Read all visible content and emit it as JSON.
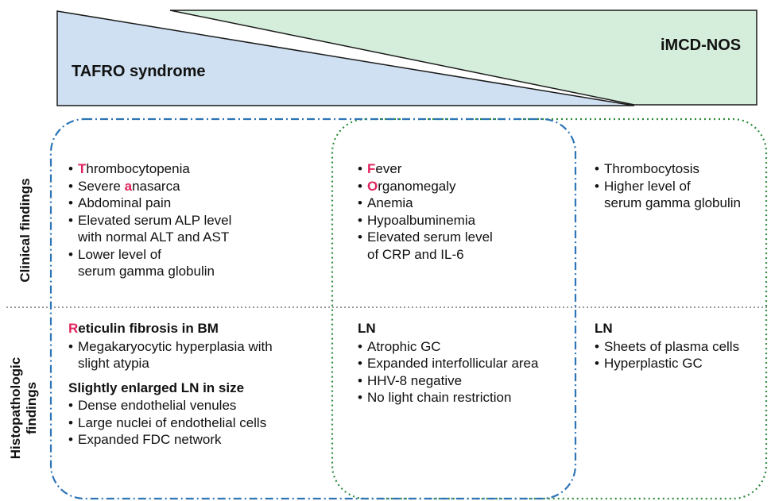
{
  "header": {
    "left_title": "TAFRO syndrome",
    "right_title": "iMCD-NOS"
  },
  "row_labels": {
    "clinical": "Clinical findings",
    "histo_line1": "Histopathologic",
    "histo_line2": "findings"
  },
  "clinical": {
    "tafro": [
      {
        "hl": "T",
        "rest": "hrombocytopenia"
      },
      {
        "pre": "Severe ",
        "hl": "a",
        "rest": "nasarca"
      },
      {
        "rest": "Abdominal pain"
      },
      {
        "rest": "Elevated serum ALP level",
        "cont": "with normal ALT and AST"
      },
      {
        "rest": "Lower level of",
        "cont": "serum gamma globulin"
      }
    ],
    "shared": [
      {
        "hl": "F",
        "rest": "ever"
      },
      {
        "hl": "O",
        "rest": "rganomegaly"
      },
      {
        "rest": "Anemia"
      },
      {
        "rest": "Hypoalbuminemia"
      },
      {
        "rest": "Elevated serum level",
        "cont": "of CRP and IL-6"
      }
    ],
    "imcd": [
      {
        "rest": "Thrombocytosis"
      },
      {
        "rest": "Higher level of",
        "cont": "serum gamma globulin"
      }
    ]
  },
  "histo": {
    "tafro": {
      "heading1_hl": "R",
      "heading1_rest": "eticulin fibrosis in BM",
      "items1": [
        {
          "rest": "Megakaryocytic hyperplasia with",
          "cont": "slight atypia"
        }
      ],
      "heading2": "Slightly enlarged LN in size",
      "items2": [
        {
          "rest": "Dense endothelial venules"
        },
        {
          "rest": "Large nuclei of endothelial cells"
        },
        {
          "rest": "Expanded FDC network"
        }
      ]
    },
    "shared": {
      "heading": "LN",
      "items": [
        {
          "rest": "Atrophic GC"
        },
        {
          "rest": "Expanded interfollicular area"
        },
        {
          "rest": "HHV-8 negative"
        },
        {
          "rest": "No light chain restriction"
        }
      ]
    },
    "imcd": {
      "heading": "LN",
      "items": [
        {
          "rest": "Sheets of plasma cells"
        },
        {
          "rest": "Hyperplastic GC"
        }
      ]
    }
  },
  "colors": {
    "tafro_fill": "#cfe0f2",
    "imcd_fill": "#d5eedb",
    "tafro_border": "#2e75b6",
    "imcd_border": "#2e8b3c",
    "divider": "#9a9a9a",
    "highlight": "#e0245e"
  }
}
